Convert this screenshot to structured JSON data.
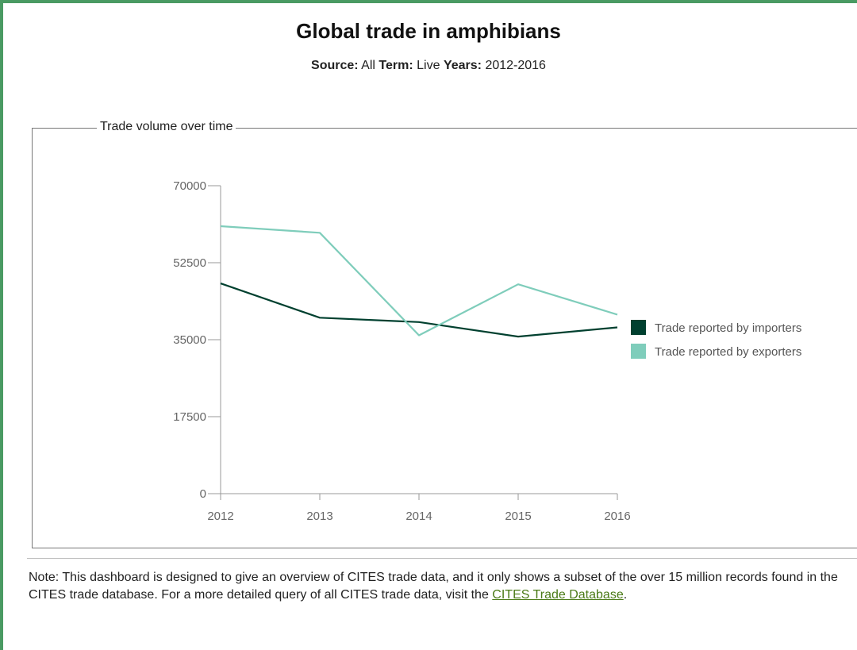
{
  "header": {
    "title": "Global trade in amphibians",
    "filters": [
      {
        "label": "Source:",
        "value": "All"
      },
      {
        "label": "Term:",
        "value": "Live"
      },
      {
        "label": "Years:",
        "value": "2012-2016"
      }
    ]
  },
  "panel": {
    "legend_title": "Trade volume over time"
  },
  "chart_data": {
    "type": "line",
    "title": "",
    "xlabel": "",
    "ylabel": "",
    "x": [
      "2012",
      "2013",
      "2014",
      "2015",
      "2016"
    ],
    "ylim": [
      0,
      70000
    ],
    "yticks": [
      "70000",
      "52500",
      "35000",
      "17500",
      "0"
    ],
    "grid": false,
    "legend_position": "right",
    "series": [
      {
        "name": "Trade reported by importers",
        "color": "#00402f",
        "values": [
          47800,
          40000,
          39000,
          35700,
          37800
        ]
      },
      {
        "name": "Trade reported by exporters",
        "color": "#7fcdbb",
        "values": [
          60800,
          59300,
          36000,
          47600,
          40700
        ]
      }
    ]
  },
  "note": {
    "text": "Note: This dashboard is designed to give an overview of CITES trade data, and it only shows a subset of the over 15 million records found in the CITES trade database. For a more detailed query of all CITES trade data, visit the ",
    "link_text": "CITES Trade Database",
    "suffix": "."
  }
}
